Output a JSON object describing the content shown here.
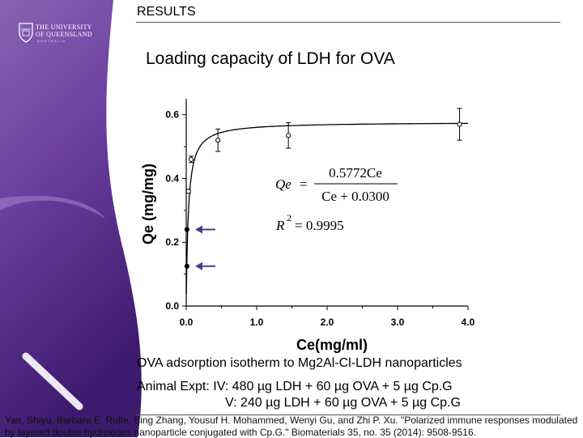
{
  "header": {
    "section": "RESULTS",
    "logo_line1": "THE UNIVERSITY",
    "logo_line2": "OF QUEENSLAND",
    "logo_line3": "AUSTRALIA",
    "slide_title": "Loading capacity of LDH for OVA"
  },
  "chart_data": {
    "type": "scatter",
    "xlabel": "Ce(mg/ml)",
    "ylabel": "Qe (mg/mg)",
    "xlim": [
      0,
      4.0
    ],
    "ylim": [
      0,
      0.65
    ],
    "x_ticks": [
      "0.0",
      "1.0",
      "2.0",
      "3.0",
      "4.0"
    ],
    "y_ticks": [
      "0.0",
      "0.2",
      "0.4",
      "0.6"
    ],
    "points": [
      {
        "x": 0.01,
        "y": 0.125,
        "err": 0,
        "filled": true
      },
      {
        "x": 0.01,
        "y": 0.24,
        "err": 0,
        "filled": true
      },
      {
        "x": 0.03,
        "y": 0.36,
        "err": 0.005,
        "filled": false
      },
      {
        "x": 0.07,
        "y": 0.46,
        "err": 0.01,
        "filled": false
      },
      {
        "x": 0.45,
        "y": 0.52,
        "err": 0.035,
        "filled": false
      },
      {
        "x": 1.45,
        "y": 0.535,
        "err": 0.04,
        "filled": false
      },
      {
        "x": 3.88,
        "y": 0.57,
        "err": 0.05,
        "filled": false
      }
    ],
    "fit": {
      "qmax": 0.5772,
      "k": 0.03
    },
    "arrows_at": [
      0.24,
      0.125
    ],
    "grid": false,
    "equation": {
      "lhs": "Qe",
      "eq": "=",
      "numerator": "0.5772Ce",
      "denominator": "Ce + 0.0300",
      "r2_label": "R",
      "r2_exp": "2",
      "r2_value": "= 0.9995"
    }
  },
  "captions": {
    "caption": "OVA adsorption isotherm to Mg2Al-Cl-LDH nanoparticles",
    "expt1": "Animal Expt: IV: 480 µg LDH + 60 µg OVA + 5 µg Cp.G",
    "expt2": "V: 240 µg LDH + 60 µg OVA + 5 µg Cp.G"
  },
  "reference": {
    "line1": "Yan, Shiyu, Barbara E. Rolfe, Bing Zhang, Yousuf H. Mohammed, Wenyi Gu, and Zhi P. Xu. \"Polarized immune responses modulated",
    "line2": "by layered double hydroxides nanoparticle conjugated with Cp.G.\" Biomaterials 35, no. 35 (2014): 9508-9516."
  },
  "colors": {
    "sidebar_top": "#8a63b3",
    "sidebar_mid": "#5a2d91",
    "sidebar_bottom": "#3e1a6e",
    "arrow": "#4a3a90"
  }
}
